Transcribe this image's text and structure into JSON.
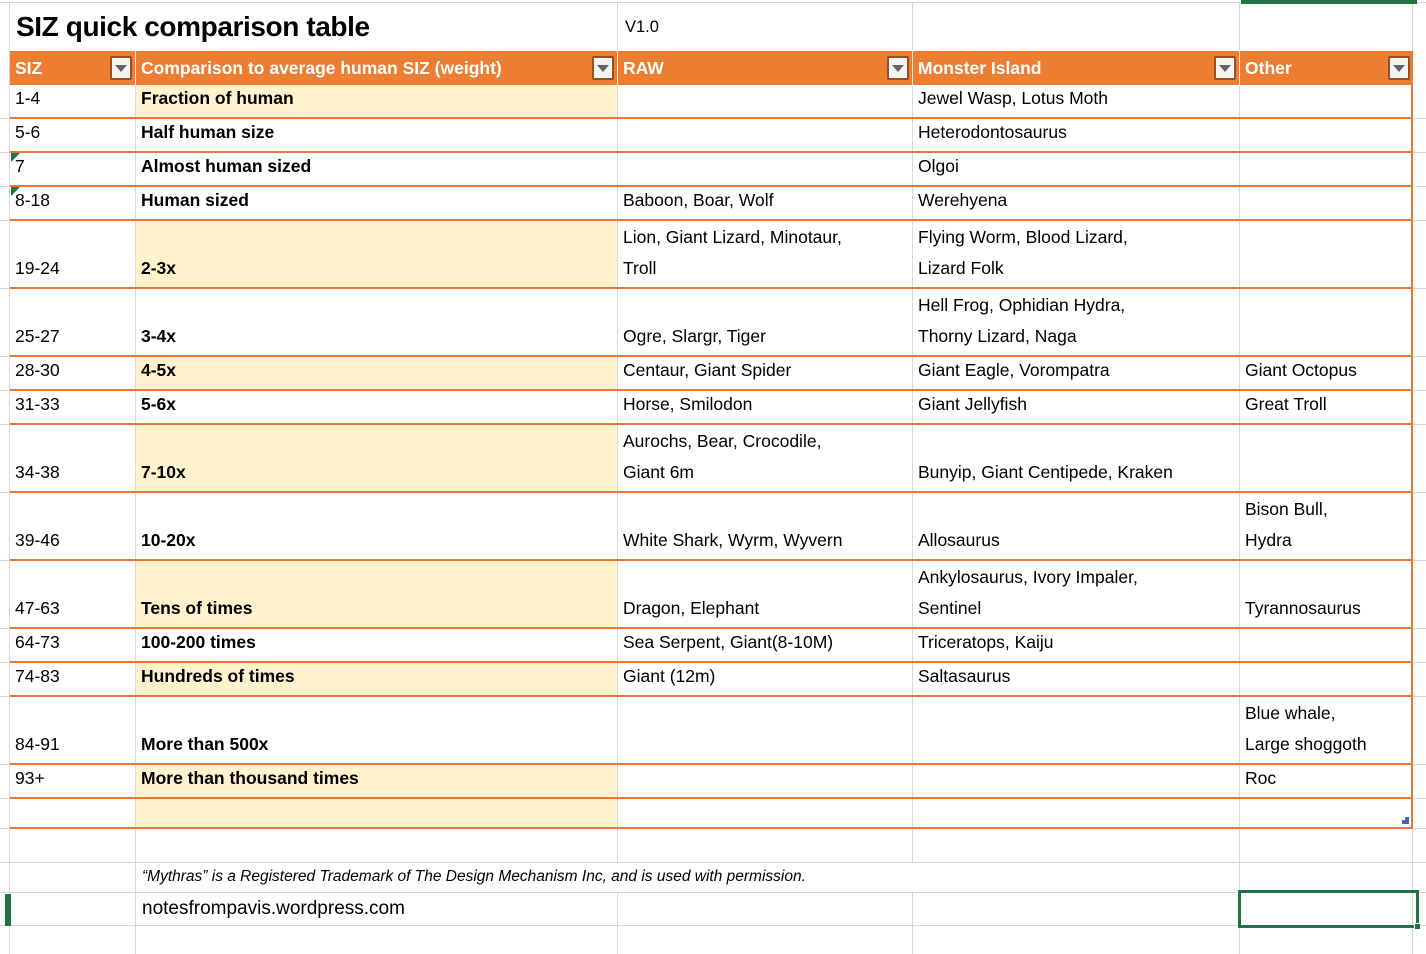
{
  "title": "SIZ quick comparison table",
  "version": "V1.0",
  "colors": {
    "header-bg": "#ED7D31",
    "table-border": "#E8782F",
    "band": "#FFF2CC",
    "grid": "#D6D6D6",
    "select-green": "#217346",
    "handle-blue": "#4066B0"
  },
  "table": {
    "columns": [
      {
        "key": "siz",
        "label": "SIZ"
      },
      {
        "key": "comparison",
        "label": "Comparison to average human SIZ (weight)"
      },
      {
        "key": "raw",
        "label": "RAW"
      },
      {
        "key": "monster_island",
        "label": "Monster Island"
      },
      {
        "key": "other",
        "label": "Other"
      }
    ],
    "rows": [
      {
        "siz": "1-4",
        "comparison": "Fraction of human",
        "raw": "",
        "monster_island": "Jewel Wasp, Lotus Moth",
        "other": "",
        "banded": true,
        "flag": false
      },
      {
        "siz": "5-6",
        "comparison": "Half human size",
        "raw": "",
        "monster_island": "Heterodontosaurus",
        "other": "",
        "banded": false,
        "flag": false
      },
      {
        "siz": "7",
        "comparison": "Almost human sized",
        "raw": "",
        "monster_island": "Olgoi",
        "other": "",
        "banded": false,
        "flag": true
      },
      {
        "siz": "8-18",
        "comparison": "Human sized",
        "raw": "Baboon, Boar, Wolf",
        "monster_island": "Werehyena",
        "other": "",
        "banded": false,
        "flag": true
      },
      {
        "siz": "19-24",
        "comparison": "2-3x",
        "raw": "Lion, Giant Lizard, Minotaur,\nTroll",
        "monster_island": "Flying Worm, Blood Lizard,\nLizard Folk",
        "other": "",
        "banded": true,
        "flag": false
      },
      {
        "siz": "25-27",
        "comparison": "3-4x",
        "raw": "Ogre, Slargr, Tiger",
        "monster_island": "Hell Frog, Ophidian Hydra,\nThorny Lizard, Naga",
        "other": "",
        "banded": false,
        "flag": false
      },
      {
        "siz": "28-30",
        "comparison": "4-5x",
        "raw": "Centaur, Giant Spider",
        "monster_island": "Giant Eagle, Vorompatra",
        "other": "Giant Octopus",
        "banded": true,
        "flag": false
      },
      {
        "siz": "31-33",
        "comparison": "5-6x",
        "raw": "Horse, Smilodon",
        "monster_island": "Giant Jellyfish",
        "other": "Great Troll",
        "banded": false,
        "flag": false
      },
      {
        "siz": "34-38",
        "comparison": "7-10x",
        "raw": "Aurochs, Bear, Crocodile,\nGiant 6m",
        "monster_island": "Bunyip, Giant Centipede, Kraken",
        "other": "",
        "banded": true,
        "flag": false
      },
      {
        "siz": "39-46",
        "comparison": "10-20x",
        "raw": "White Shark, Wyrm, Wyvern",
        "monster_island": "Allosaurus",
        "other": "Bison Bull,\nHydra",
        "banded": false,
        "flag": false
      },
      {
        "siz": "47-63",
        "comparison": "Tens of times",
        "raw": "Dragon, Elephant",
        "monster_island": "Ankylosaurus, Ivory Impaler,\nSentinel",
        "other": "Tyrannosaurus",
        "banded": true,
        "flag": false
      },
      {
        "siz": "64-73",
        "comparison": "100-200 times",
        "raw": "Sea Serpent, Giant(8-10M)",
        "monster_island": "Triceratops, Kaiju",
        "other": "",
        "banded": false,
        "flag": false
      },
      {
        "siz": "74-83",
        "comparison": "Hundreds of times",
        "raw": "Giant (12m)",
        "monster_island": "Saltasaurus",
        "other": "",
        "banded": true,
        "flag": false
      },
      {
        "siz": "84-91",
        "comparison": "More than 500x",
        "raw": "",
        "monster_island": "",
        "other": "Blue whale,\nLarge shoggoth",
        "banded": false,
        "flag": false
      },
      {
        "siz": "93+",
        "comparison": "More than thousand times",
        "raw": "",
        "monster_island": "",
        "other": "Roc",
        "banded": true,
        "flag": false
      },
      {
        "siz": "",
        "comparison": "",
        "raw": "",
        "monster_island": "",
        "other": "",
        "banded": true,
        "flag": false,
        "spacer": true
      }
    ]
  },
  "footer": {
    "trademark": "“Mythras” is a Registered Trademark of The Design Mechanism Inc, and is used with permission.",
    "website": "notesfrompavis.wordpress.com"
  }
}
